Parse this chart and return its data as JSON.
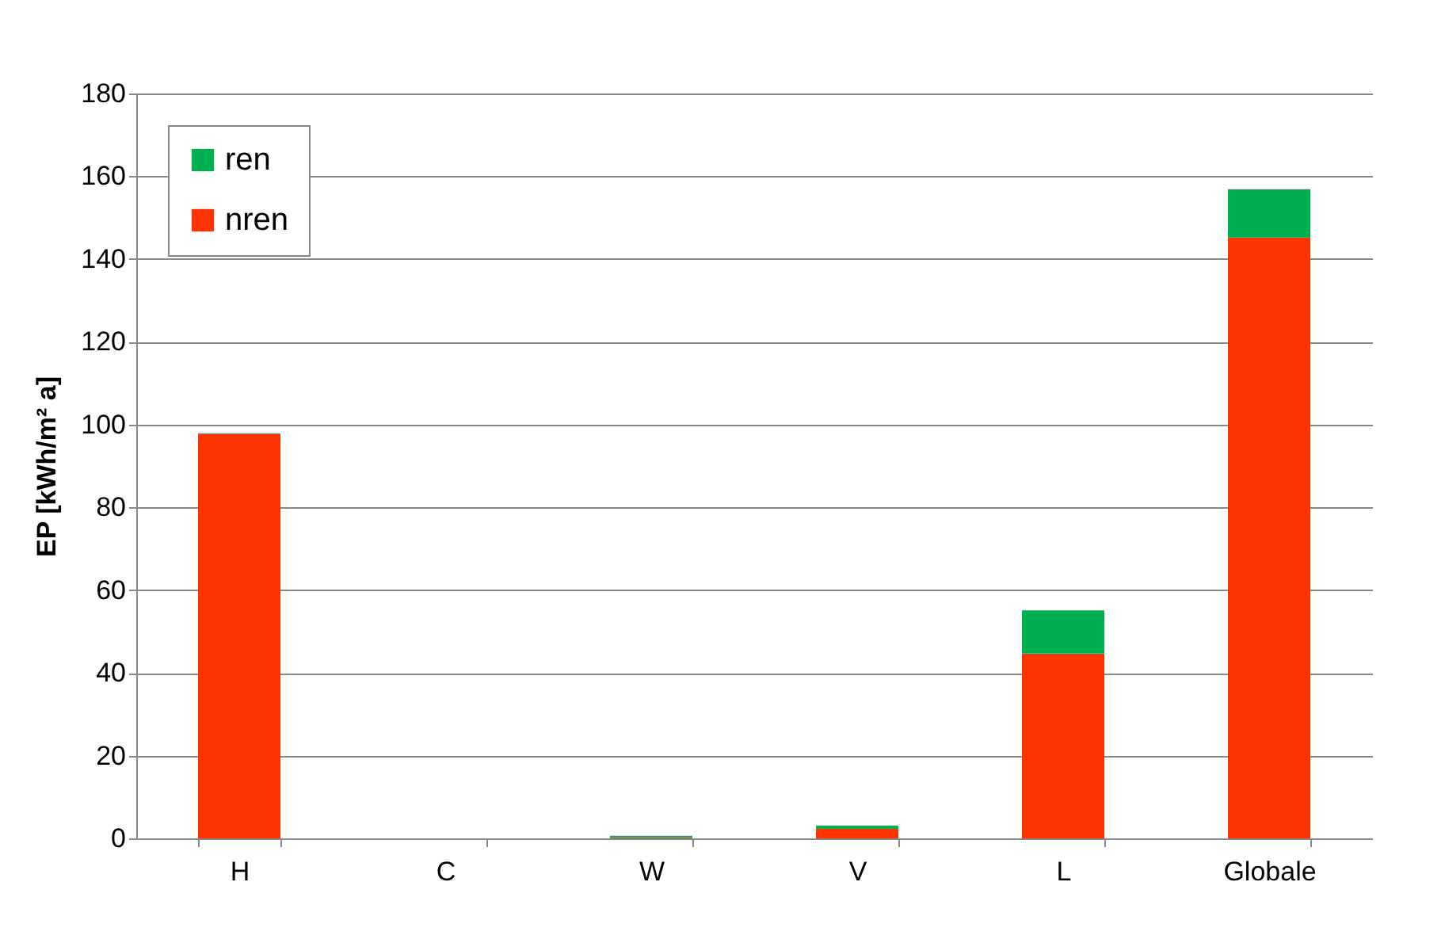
{
  "chart_data": {
    "type": "bar",
    "stacked": true,
    "ylabel": "EP [kWh/m² a]",
    "categories": [
      "H",
      "C",
      "W",
      "V",
      "L",
      "Globale"
    ],
    "series": [
      {
        "name": "nren",
        "color": "#ff3300",
        "values": [
          97.7,
          0,
          0.3,
          2.3,
          44.7,
          145.2
        ]
      },
      {
        "name": "ren",
        "color": "#00b050",
        "values": [
          0.2,
          0,
          0.3,
          0.8,
          10.4,
          11.7
        ]
      }
    ],
    "ylim": [
      0,
      180
    ],
    "yticks": [
      0,
      20,
      40,
      60,
      80,
      100,
      120,
      140,
      160,
      180
    ],
    "grid": "y",
    "legend": "top left"
  }
}
